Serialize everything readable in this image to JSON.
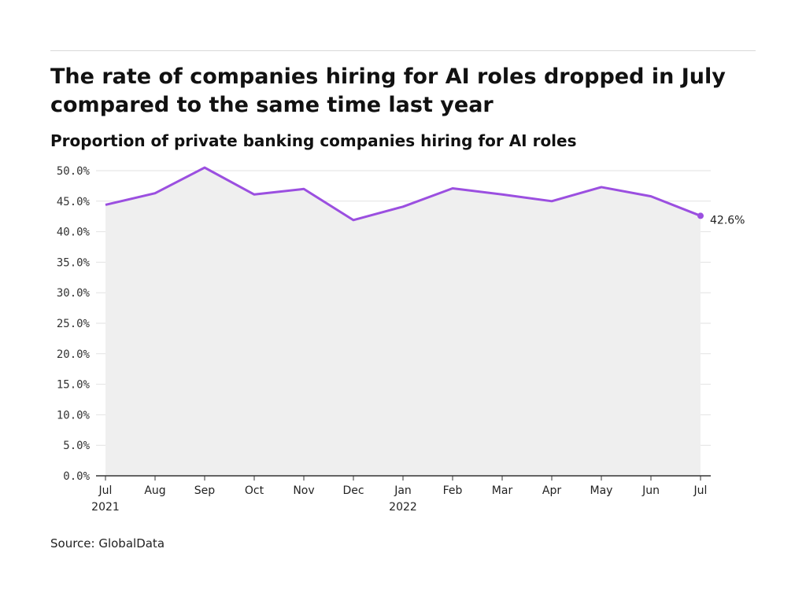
{
  "title": "The rate of companies hiring for AI roles dropped in July compared to the same time last year",
  "subtitle": "Proportion of private banking companies hiring for AI roles",
  "source": "Source: GlobalData",
  "colors": {
    "line": "#9b4fe0",
    "area": "#efefef",
    "grid": "#e2e2e2",
    "axis": "#333333"
  },
  "chart_data": {
    "type": "area",
    "x_labels": [
      [
        "Jul",
        "2021"
      ],
      [
        "Aug",
        ""
      ],
      [
        "Sep",
        ""
      ],
      [
        "Oct",
        ""
      ],
      [
        "Nov",
        ""
      ],
      [
        "Dec",
        ""
      ],
      [
        "Jan",
        "2022"
      ],
      [
        "Feb",
        ""
      ],
      [
        "Mar",
        ""
      ],
      [
        "Apr",
        ""
      ],
      [
        "May",
        ""
      ],
      [
        "Jun",
        ""
      ],
      [
        "Jul",
        ""
      ]
    ],
    "values": [
      44.4,
      46.3,
      50.5,
      46.1,
      47.0,
      41.9,
      44.1,
      47.1,
      46.1,
      45.0,
      47.3,
      45.8,
      42.6
    ],
    "ylim": [
      0,
      50
    ],
    "yticks": [
      0,
      5,
      10,
      15,
      20,
      25,
      30,
      35,
      40,
      45,
      50
    ],
    "ytick_labels": [
      "0.0%",
      "5.0%",
      "10.0%",
      "15.0%",
      "20.0%",
      "25.0%",
      "30.0%",
      "35.0%",
      "40.0%",
      "45.0%",
      "50.0%"
    ],
    "last_label": "42.6%",
    "grid": true
  }
}
